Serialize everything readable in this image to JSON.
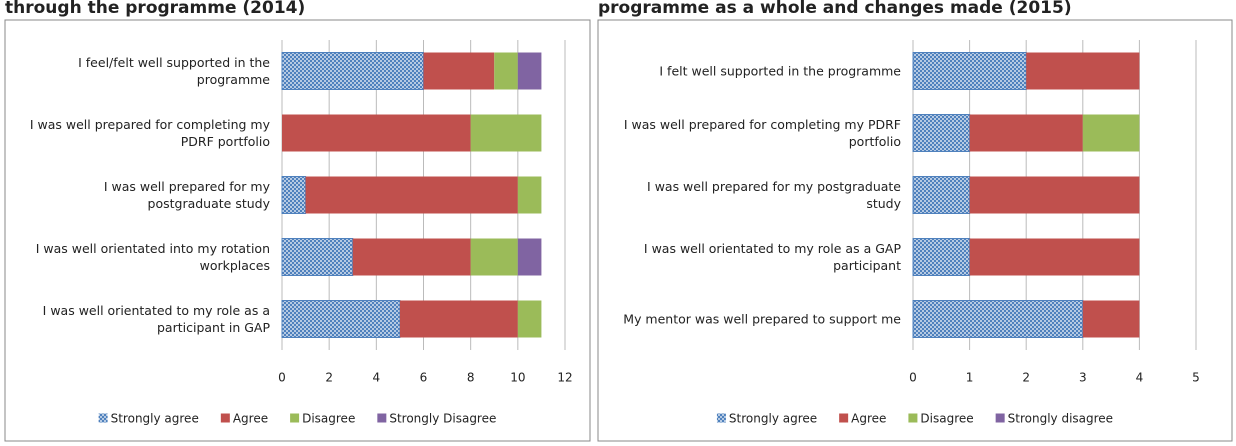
{
  "chart_data": [
    {
      "type": "bar",
      "orientation": "horizontal",
      "stacked": true,
      "title": "through the programme (2014)",
      "categories": [
        "I feel/felt well supported in the programme",
        "I was well prepared for completing my PDRF portfolio",
        "I was well prepared for my postgraduate study",
        "I was well orientated into my rotation workplaces",
        "I was well orientated to my role as a participant in GAP"
      ],
      "series": [
        {
          "name": "Strongly agree",
          "color": "#4f81bd",
          "pattern": "dots",
          "values": [
            6,
            0,
            1,
            3,
            5
          ]
        },
        {
          "name": "Agree",
          "color": "#c0504d",
          "values": [
            3,
            8,
            9,
            5,
            5
          ]
        },
        {
          "name": "Disagree",
          "color": "#9bbb59",
          "values": [
            1,
            3,
            1,
            2,
            1
          ]
        },
        {
          "name": "Strongly Disagree",
          "color": "#8064a2",
          "values": [
            1,
            0,
            0,
            1,
            0
          ]
        }
      ],
      "xlim": [
        0,
        12
      ],
      "xticks": [
        0,
        2,
        4,
        6,
        8,
        10,
        12
      ],
      "grid": true,
      "legend": "bottom"
    },
    {
      "type": "bar",
      "orientation": "horizontal",
      "stacked": true,
      "title": "programme as a whole and changes made (2015)",
      "categories": [
        "I felt well supported in the programme",
        "I was well prepared for completing my PDRF portfolio",
        "I was well prepared for my postgraduate study",
        "I was well orientated to my role as a GAP participant",
        "My mentor was well prepared to support me"
      ],
      "series": [
        {
          "name": "Strongly agree",
          "color": "#4f81bd",
          "pattern": "dots",
          "values": [
            2,
            1,
            1,
            1,
            3
          ]
        },
        {
          "name": "Agree",
          "color": "#c0504d",
          "values": [
            2,
            2,
            3,
            3,
            1
          ]
        },
        {
          "name": "Disagree",
          "color": "#9bbb59",
          "values": [
            0,
            1,
            0,
            0,
            0
          ]
        },
        {
          "name": "Strongly disagree",
          "color": "#8064a2",
          "values": [
            0,
            0,
            0,
            0,
            0
          ]
        }
      ],
      "xlim": [
        0,
        5
      ],
      "xticks": [
        0,
        1,
        2,
        3,
        4,
        5
      ],
      "grid": true,
      "legend": "bottom"
    }
  ]
}
